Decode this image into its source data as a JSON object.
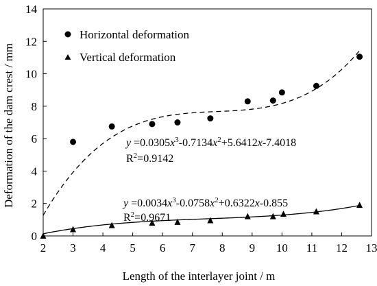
{
  "chart_data": {
    "type": "scatter",
    "xlabel": "Length of the interlayer joint / m",
    "ylabel": "Deformation of the dam crest / mm",
    "xlim": [
      2,
      13
    ],
    "ylim": [
      0,
      14
    ],
    "x_ticks": [
      2,
      3,
      4,
      5,
      6,
      7,
      8,
      9,
      10,
      11,
      12,
      13
    ],
    "y_ticks": [
      0,
      2,
      4,
      6,
      8,
      10,
      12,
      14
    ],
    "legend_position": "top-left",
    "grid": false,
    "series": [
      {
        "name": "Horizontal deformation",
        "marker": "circle",
        "points": [
          {
            "x": 3.0,
            "y": 5.8
          },
          {
            "x": 4.3,
            "y": 6.75
          },
          {
            "x": 5.65,
            "y": 6.9
          },
          {
            "x": 6.5,
            "y": 7.0
          },
          {
            "x": 7.6,
            "y": 7.25
          },
          {
            "x": 8.85,
            "y": 8.3
          },
          {
            "x": 9.7,
            "y": 8.35
          },
          {
            "x": 10.0,
            "y": 8.85
          },
          {
            "x": 11.15,
            "y": 9.25
          },
          {
            "x": 12.6,
            "y": 11.05
          }
        ],
        "fit": {
          "style": "dashed",
          "coefficients": [
            0.0305,
            -0.7134,
            5.6412,
            -7.4018
          ],
          "equation": "y =0.0305x³-0.7134x²+5.6412x-7.4018",
          "r2": "R²=0.9142"
        }
      },
      {
        "name": "Vertical deformation",
        "marker": "triangle",
        "points": [
          {
            "x": 2.0,
            "y": 0.0
          },
          {
            "x": 3.0,
            "y": 0.4
          },
          {
            "x": 4.3,
            "y": 0.65
          },
          {
            "x": 5.65,
            "y": 0.8
          },
          {
            "x": 6.5,
            "y": 0.85
          },
          {
            "x": 7.6,
            "y": 0.95
          },
          {
            "x": 8.85,
            "y": 1.2
          },
          {
            "x": 9.7,
            "y": 1.2
          },
          {
            "x": 10.05,
            "y": 1.35
          },
          {
            "x": 11.15,
            "y": 1.5
          },
          {
            "x": 12.6,
            "y": 1.9
          }
        ],
        "fit": {
          "style": "solid",
          "coefficients": [
            0.0034,
            -0.0758,
            0.6322,
            -0.855
          ],
          "equation": "y =0.0034x³-0.0758x²+0.6322x-0.855",
          "r2": "R²=0.9671"
        }
      }
    ]
  }
}
